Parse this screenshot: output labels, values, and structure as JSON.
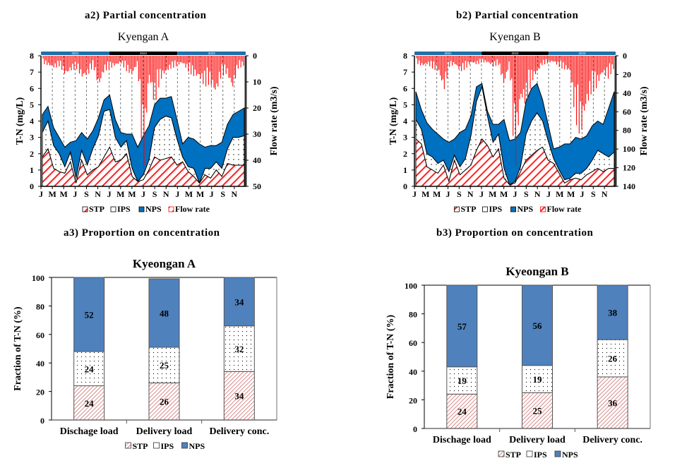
{
  "panels": {
    "a2": "a2)  Partial  concentration",
    "b2": "b2)  Partial  concentration",
    "a3": "a3)  Proportion  on  concentration",
    "b3": "b3)  Proportion  on  concentration"
  },
  "colors": {
    "stp": "#ff2020",
    "ips_dot": "#000000",
    "nps": "#0070c0",
    "flow": "#ff0000",
    "bar_nps": "#4f81bd",
    "bar_stp": "#c0504d",
    "year_blue": "#1f6fa8",
    "year_black": "#000000"
  },
  "chart_data": [
    {
      "id": "a2",
      "type": "area",
      "title": "Kyengan A",
      "ylabel": "T-N (mg/L)",
      "y2label": "Flow rate (m3/s)",
      "ylim": [
        0,
        8
      ],
      "y2lim": [
        50,
        0
      ],
      "yticks": [
        0,
        1,
        2,
        3,
        4,
        5,
        6,
        7,
        8
      ],
      "y2ticks": [
        0,
        10,
        20,
        30,
        40,
        50
      ],
      "xticks": [
        "J",
        "M",
        "M",
        "J",
        "S",
        "N",
        "J",
        "M",
        "M",
        "J",
        "S",
        "N",
        "J",
        "M",
        "M",
        "J",
        "S",
        "N"
      ],
      "years": [
        "2021",
        "2022",
        "2023"
      ],
      "legend": [
        "STP",
        "IPS",
        "NPS",
        "Flow rate"
      ],
      "x_months": [
        0,
        1,
        2,
        3,
        4,
        5,
        6,
        7,
        8,
        9,
        10,
        11,
        12,
        13,
        14,
        15,
        16,
        17,
        18,
        19,
        20,
        21,
        22,
        23,
        24,
        25,
        26,
        27,
        28,
        29,
        30,
        31,
        32,
        33,
        34,
        35,
        36
      ],
      "series": [
        {
          "name": "STP",
          "values": [
            1.8,
            2.3,
            1.1,
            0.9,
            0.8,
            1.5,
            0.2,
            1.6,
            0.7,
            1.0,
            1.2,
            1.8,
            2.4,
            1.5,
            1.6,
            2.0,
            0.6,
            0.3,
            0.4,
            1.0,
            1.8,
            1.6,
            1.7,
            1.8,
            1.3,
            1.5,
            0.9,
            0.6,
            0.2,
            0.7,
            0.5,
            1.0,
            0.6,
            1.4,
            1.3,
            1.3,
            1.3
          ]
        },
        {
          "name": "IPS",
          "values": [
            1.5,
            1.7,
            1.4,
            1.1,
            0.4,
            0.6,
            0.3,
            0.6,
            0.6,
            1.3,
            1.9,
            2.8,
            2.3,
            1.5,
            0.8,
            0.8,
            0.5,
            0.0,
            0.3,
            0.6,
            1.8,
            2.5,
            2.6,
            2.4,
            1.6,
            0.3,
            0.3,
            0.5,
            0.0,
            0.4,
            0.6,
            0.5,
            0.5,
            0.9,
            1.7,
            1.7,
            1.8
          ]
        },
        {
          "name": "NPS",
          "values": [
            1.1,
            0.9,
            1.1,
            1.0,
            1.2,
            0.6,
            2.3,
            1.1,
            1.6,
            1.1,
            1.1,
            0.7,
            0.9,
            1.1,
            0.9,
            0.4,
            2.1,
            2.1,
            2.4,
            2.1,
            1.4,
            1.3,
            1.1,
            1.3,
            1.2,
            0.8,
            1.8,
            1.8,
            2.4,
            1.3,
            1.4,
            1.0,
            1.6,
            1.5,
            1.4,
            1.6,
            1.7
          ]
        }
      ],
      "flow_peaks": [
        3,
        4,
        5,
        4,
        8,
        6,
        5,
        9,
        8,
        4,
        13,
        6,
        5,
        4,
        3,
        6,
        8,
        3,
        48,
        8,
        20,
        10,
        7,
        5,
        4,
        3,
        6,
        8,
        9,
        12,
        11,
        16,
        8,
        7,
        14,
        5,
        4
      ]
    },
    {
      "id": "b2",
      "type": "area",
      "title": "Kyengan B",
      "ylabel": "T-N (mg/L)",
      "y2label": "Flow rate (m3/s)",
      "ylim": [
        0,
        8
      ],
      "y2lim": [
        140,
        0
      ],
      "yticks": [
        0,
        1,
        2,
        3,
        4,
        5,
        6,
        7,
        8
      ],
      "y2ticks": [
        0,
        20,
        40,
        60,
        80,
        100,
        120,
        140
      ],
      "xticks": [
        "J",
        "M",
        "M",
        "J",
        "S",
        "N",
        "J",
        "M",
        "M",
        "J",
        "S",
        "N",
        "J",
        "M",
        "M",
        "J",
        "S",
        "N"
      ],
      "years": [
        "2021",
        "2022",
        "2023"
      ],
      "legend": [
        "STP",
        "IPS",
        "NPS",
        "Flow rate"
      ],
      "x_months": [
        0,
        1,
        2,
        3,
        4,
        5,
        6,
        7,
        8,
        9,
        10,
        11,
        12,
        13,
        14,
        15,
        16,
        17,
        18,
        19,
        20,
        21,
        22,
        23,
        24,
        25,
        26,
        27,
        28,
        29,
        30,
        31,
        32,
        33,
        34,
        35,
        36
      ],
      "series": [
        {
          "name": "STP",
          "values": [
            2.9,
            2.6,
            1.2,
            1.0,
            0.8,
            1.3,
            0.3,
            1.6,
            0.7,
            1.0,
            1.3,
            2.2,
            2.9,
            2.5,
            1.8,
            2.3,
            0.5,
            0.1,
            0.2,
            0.9,
            1.6,
            1.9,
            2.2,
            2.4,
            1.6,
            1.4,
            0.8,
            0.2,
            0.4,
            0.5,
            0.4,
            0.7,
            0.9,
            1.1,
            0.9,
            1.1,
            1.1
          ]
        },
        {
          "name": "IPS",
          "values": [
            1.2,
            0.9,
            0.8,
            0.8,
            0.6,
            0.3,
            0.6,
            0.3,
            0.5,
            0.7,
            1.8,
            3.0,
            3.2,
            1.8,
            0.9,
            0.9,
            0.6,
            0.0,
            0.1,
            0.3,
            1.6,
            2.1,
            2.3,
            1.6,
            1.2,
            0.3,
            0.2,
            0.2,
            0.1,
            0.3,
            0.4,
            0.4,
            0.7,
            1.1,
            1.1,
            0.7,
            1.0
          ]
        },
        {
          "name": "NPS",
          "values": [
            1.7,
            1.2,
            1.9,
            1.7,
            1.8,
            1.3,
            1.8,
            1.0,
            2.1,
            1.8,
            1.2,
            0.9,
            0.2,
            0.3,
            1.1,
            0.6,
            3.0,
            2.7,
            2.6,
            2.1,
            2.0,
            2.0,
            1.8,
            1.3,
            1.0,
            0.6,
            1.4,
            2.2,
            2.1,
            2.2,
            2.1,
            2.0,
            2.1,
            1.8,
            1.8,
            3.0,
            3.7
          ]
        }
      ],
      "flow_peaks": [
        8,
        12,
        10,
        14,
        18,
        40,
        12,
        10,
        18,
        14,
        8,
        10,
        7,
        8,
        12,
        10,
        35,
        8,
        130,
        50,
        55,
        30,
        20,
        10,
        8,
        7,
        12,
        15,
        18,
        70,
        90,
        60,
        40,
        35,
        20,
        25,
        15
      ]
    },
    {
      "id": "a3",
      "type": "bar",
      "stacked": true,
      "title": "Kyeongan A",
      "ylabel": "Fraction of T-N (%)",
      "ylim": [
        0,
        100
      ],
      "yticks": [
        0,
        20,
        40,
        60,
        80,
        100
      ],
      "categories": [
        "Dischage load",
        "Delivery load",
        "Delivery conc."
      ],
      "series": [
        {
          "name": "STP",
          "values": [
            24,
            26,
            34
          ]
        },
        {
          "name": "IPS",
          "values": [
            24,
            25,
            32
          ]
        },
        {
          "name": "NPS",
          "values": [
            52,
            48,
            34
          ]
        }
      ],
      "legend": [
        "STP",
        "IPS",
        "NPS"
      ]
    },
    {
      "id": "b3",
      "type": "bar",
      "stacked": true,
      "title": "Kyeongan B",
      "ylabel": "Fraction of T-N (%)",
      "ylim": [
        0,
        100
      ],
      "yticks": [
        0,
        20,
        40,
        60,
        80,
        100
      ],
      "categories": [
        "Dischage load",
        "Delivery load",
        "Delivery conc."
      ],
      "series": [
        {
          "name": "STP",
          "values": [
            24,
            25,
            36
          ]
        },
        {
          "name": "IPS",
          "values": [
            19,
            19,
            26
          ]
        },
        {
          "name": "NPS",
          "values": [
            57,
            56,
            38
          ]
        }
      ],
      "legend": [
        "STP",
        "IPS",
        "NPS"
      ]
    }
  ]
}
